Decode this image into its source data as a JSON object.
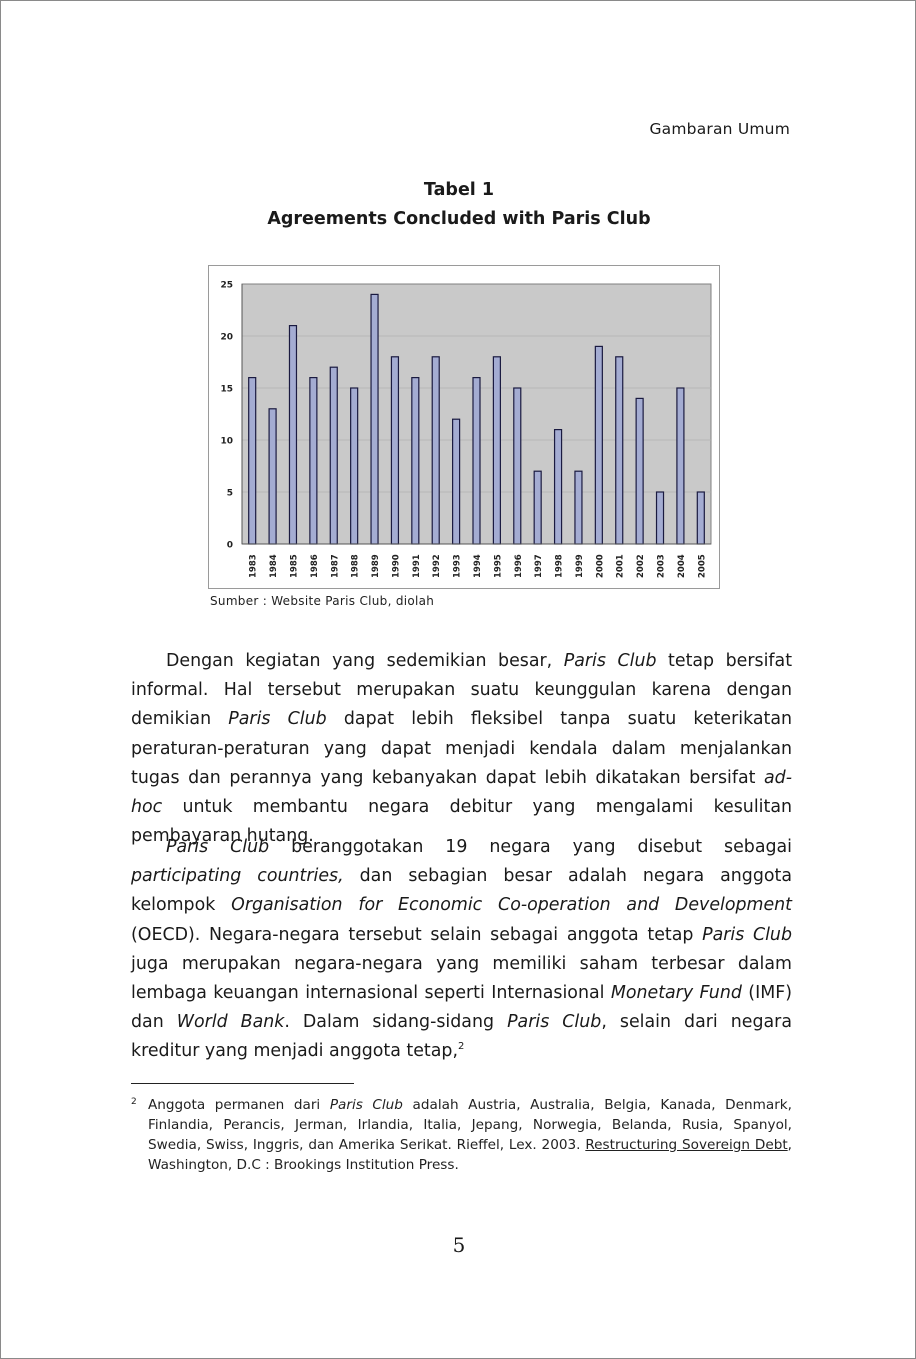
{
  "header": {
    "running_title": "Gambaran Umum"
  },
  "table": {
    "label": "Tabel 1",
    "title": "Agreements Concluded with Paris Club",
    "source": "Sumber : Website Paris Club, diolah"
  },
  "chart_data": {
    "type": "bar",
    "categories": [
      "1983",
      "1984",
      "1985",
      "1986",
      "1987",
      "1988",
      "1989",
      "1990",
      "1991",
      "1992",
      "1993",
      "1994",
      "1995",
      "1996",
      "1997",
      "1998",
      "1999",
      "2000",
      "2001",
      "2002",
      "2003",
      "2004",
      "2005"
    ],
    "values": [
      16,
      13,
      21,
      16,
      17,
      15,
      24,
      18,
      16,
      18,
      12,
      16,
      18,
      15,
      7,
      11,
      7,
      19,
      18,
      14,
      5,
      15,
      5
    ],
    "title": "",
    "xlabel": "",
    "ylabel": "",
    "ylim": [
      0,
      25
    ],
    "yticks": [
      "0",
      "5",
      "10",
      "15",
      "20",
      "25"
    ],
    "grid": true,
    "legend": "none",
    "colors": {
      "bar_fill": "#a4acd2",
      "bar_stroke": "#1a1a40",
      "plot_bg": "#c9c9c9",
      "gridline": "#b0b0b0"
    }
  },
  "paragraphs": {
    "p1": {
      "s1": "Dengan kegiatan yang sedemikian besar, ",
      "i1": "Paris Club",
      "s2": " tetap bersifat informal. Hal tersebut merupakan suatu keunggulan karena dengan demikian ",
      "i2": "Paris Club",
      "s3": " dapat lebih fleksibel tanpa suatu keterikatan peraturan-peraturan yang dapat menjadi kendala dalam menjalankan tugas dan perannya yang kebanyakan dapat lebih dikatakan bersifat ",
      "i3": "ad-hoc",
      "s4": " untuk membantu negara debitur yang mengalami kesulitan pembayaran hutang."
    },
    "p2": {
      "i1": "Paris Club",
      "s1": " beranggotakan 19 negara yang disebut sebagai ",
      "i2": "participating countries,",
      "s2": " dan sebagian besar adalah negara anggota kelompok ",
      "i3": "Organisation for Economic Co-operation and Development",
      "s3": " (OECD). Negara-negara tersebut selain sebagai anggota tetap ",
      "i4": "Paris Club",
      "s4": " juga merupakan negara-negara yang memiliki saham terbesar dalam lembaga keuangan internasional seperti Internasional ",
      "i5": "Monetary Fund",
      "s5": " (IMF) dan ",
      "i6": "World Bank",
      "s6": ". Dalam sidang-sidang ",
      "i7": "Paris Club",
      "s7": ", selain dari negara kreditur yang menjadi anggota tetap,",
      "sup": "2"
    }
  },
  "footnote": {
    "mark": "2",
    "s1": "Anggota permanen dari ",
    "i1": "Paris Club",
    "s2": " adalah Austria, Australia, Belgia, Kanada, Denmark, Finlandia, Perancis, Jerman, Irlandia, Italia, Jepang, Norwegia, Belanda, Rusia, Spanyol, Swedia, Swiss, Inggris, dan Amerika Serikat. Rieffel, Lex. 2003. ",
    "book_title": "Restructuring Sovereign Debt",
    "s3": ", Washington, D.C : Brookings Institution Press."
  },
  "page_number": "5"
}
